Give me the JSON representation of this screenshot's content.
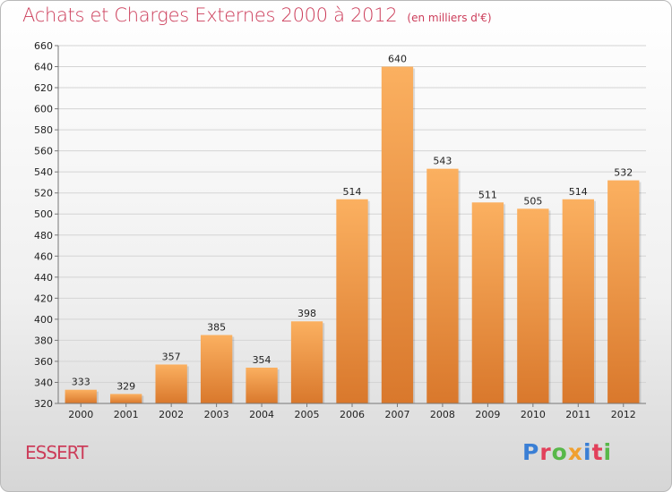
{
  "title": "Achats et Charges Externes 2000 à 2012",
  "unit": "(en milliers d'€)",
  "commune": "ESSERT",
  "logo": "Proxiti",
  "colors": {
    "title": "#cc3d5a",
    "bar_light": "#fbb060",
    "bar_dark": "#d9782c",
    "logo": [
      "#3a7fd5",
      "#e2405a",
      "#58b84a",
      "#f0a030",
      "#3a7fd5",
      "#e2405a",
      "#58b84a"
    ]
  },
  "chart_data": {
    "type": "bar",
    "categories": [
      "2000",
      "2001",
      "2002",
      "2003",
      "2004",
      "2005",
      "2006",
      "2007",
      "2008",
      "2009",
      "2010",
      "2011",
      "2012"
    ],
    "values": [
      333,
      329,
      357,
      385,
      354,
      398,
      514,
      640,
      543,
      511,
      505,
      514,
      532
    ],
    "title": "Achats et Charges Externes 2000 à 2012",
    "ylabel": "",
    "xlabel": "",
    "ylim": [
      320,
      660
    ],
    "yticks": [
      320,
      340,
      360,
      380,
      400,
      420,
      440,
      460,
      480,
      500,
      520,
      540,
      560,
      580,
      600,
      620,
      640,
      660
    ],
    "grid": true,
    "data_labels": true
  }
}
